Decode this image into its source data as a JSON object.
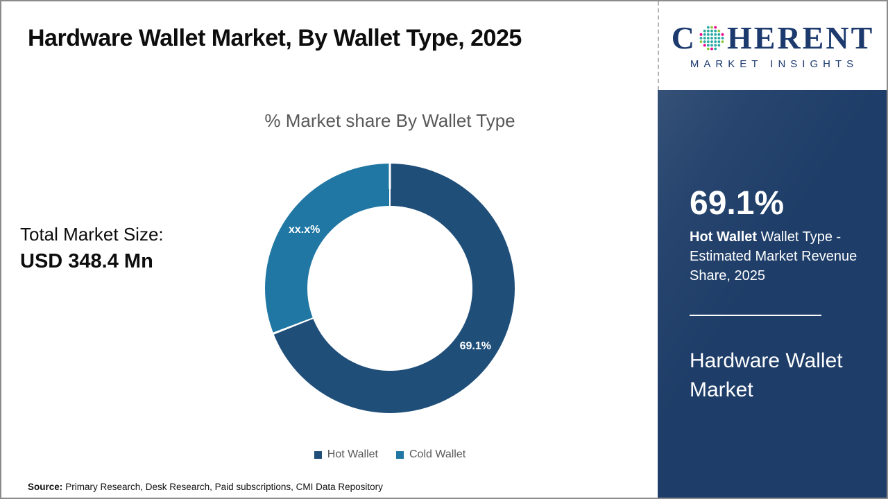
{
  "page": {
    "title": "Hardware Wallet Market, By Wallet Type, 2025",
    "source_label": "Source:",
    "source_text": "Primary Research, Desk Research, Paid subscriptions, CMI Data Repository"
  },
  "logo": {
    "word_start": "C",
    "word_end": "HERENT",
    "tagline": "MARKET INSIGHTS",
    "navy": "#1C3A6E",
    "dot_colors": [
      "#2AA9A2",
      "#8DC63F",
      "#EC008C"
    ]
  },
  "totals": {
    "label": "Total Market Size:",
    "value": "USD 348.4 Mn"
  },
  "chart_data": {
    "type": "pie",
    "donut": true,
    "title": "% Market share By Wallet Type",
    "start_angle_deg": 0,
    "direction": "clockwise",
    "slices": [
      {
        "label": "Hot Wallet",
        "value": 69.1,
        "display_label": "69.1%",
        "color": "#1F4E79"
      },
      {
        "label": "Cold Wallet",
        "value": 30.9,
        "display_label": "xx.x%",
        "color": "#2077A4"
      }
    ],
    "legend_position": "bottom",
    "legend": [
      "Hot Wallet",
      "Cold Wallet"
    ]
  },
  "sidebar": {
    "stat_value": "69.1%",
    "stat_desc_bold": "Hot Wallet",
    "stat_desc_rest": " Wallet Type - Estimated Market Revenue Share, 2025",
    "market_name": "Hardware Wallet Market",
    "bg_color": "#1E3D68"
  }
}
